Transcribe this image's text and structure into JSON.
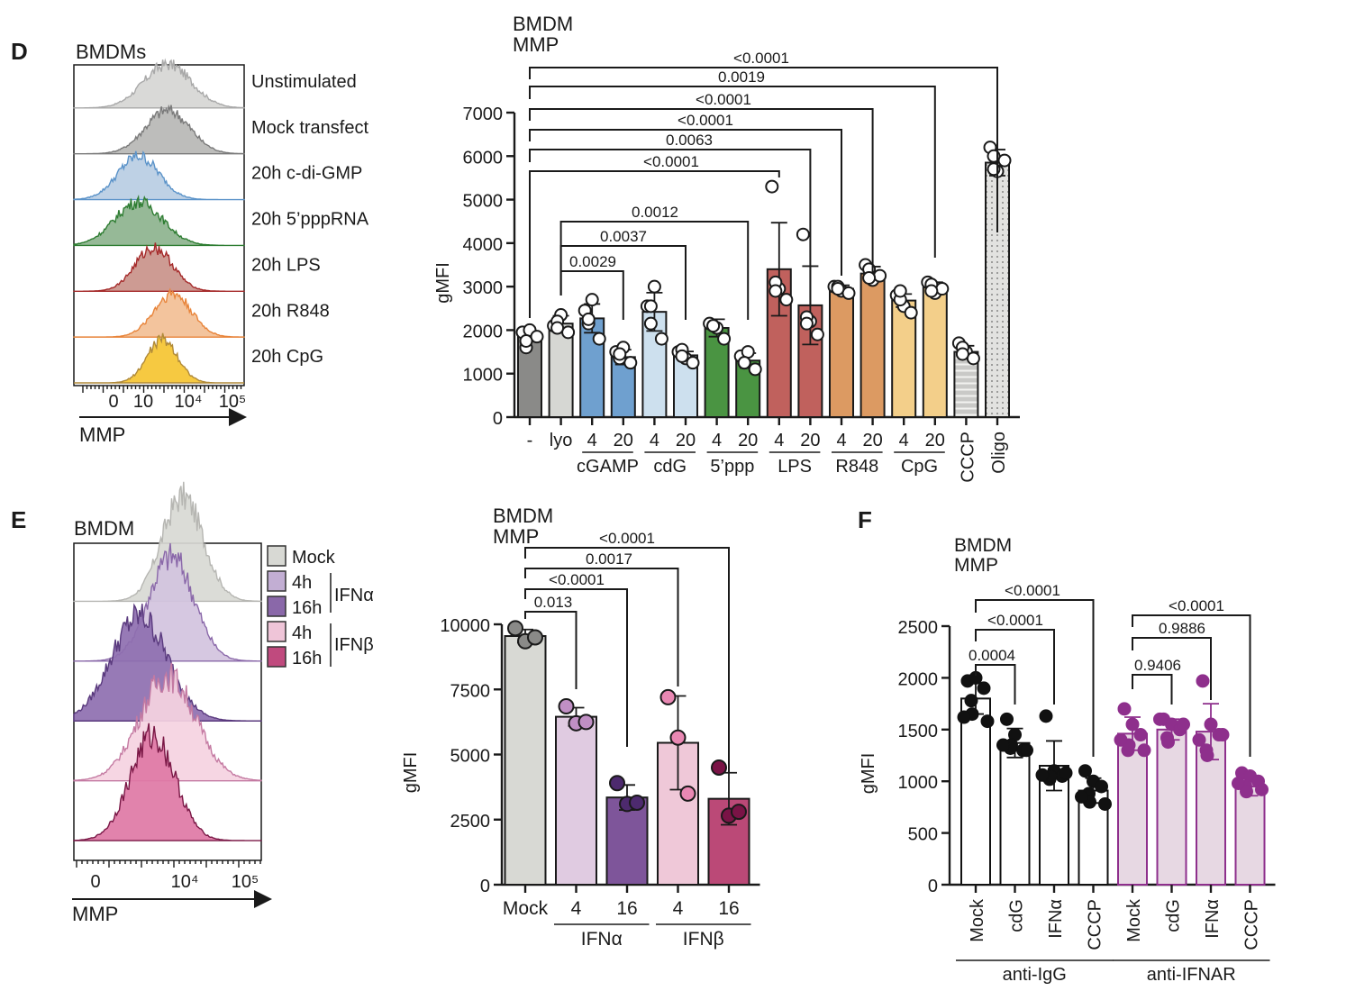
{
  "panels": {
    "D": {
      "letter": "D"
    },
    "E": {
      "letter": "E"
    },
    "F": {
      "letter": "F"
    }
  },
  "chart_data": [
    {
      "id": "D-histogram",
      "type": "area",
      "title": "BMDMs",
      "xlabel": "MMP",
      "x_ticks": [
        "0",
        "10",
        "10⁴",
        "10⁵"
      ],
      "series": [
        {
          "name": "Unstimulated",
          "color": "#a9a9a9",
          "fill": "#d6d6d4",
          "peak_pos": 0.55,
          "width": 0.14
        },
        {
          "name": "Mock transfect",
          "color": "#7a7a7a",
          "fill": "#b7b7b5",
          "peak_pos": 0.55,
          "width": 0.13
        },
        {
          "name": "20h c-di-GMP",
          "color": "#5b93c9",
          "fill": "#b8cde3",
          "peak_pos": 0.38,
          "width": 0.12
        },
        {
          "name": "20h 5’pppRNA",
          "color": "#2e7d32",
          "fill": "#8db38e",
          "peak_pos": 0.38,
          "width": 0.14
        },
        {
          "name": "20h LPS",
          "color": "#a52a2a",
          "fill": "#c9928a",
          "peak_pos": 0.47,
          "width": 0.11
        },
        {
          "name": "20h R848",
          "color": "#e8843a",
          "fill": "#f2bf95",
          "peak_pos": 0.58,
          "width": 0.11
        },
        {
          "name": "20h CpG",
          "color": "#b08a3a",
          "fill": "#f5c431",
          "peak_pos": 0.52,
          "width": 0.09
        }
      ]
    },
    {
      "id": "D-bar",
      "type": "bar",
      "title": [
        "BMDM",
        "MMP"
      ],
      "ylabel": "gMFI",
      "ylim": [
        0,
        7000
      ],
      "yticks": [
        0,
        1000,
        2000,
        3000,
        4000,
        5000,
        6000,
        7000
      ],
      "categories": [
        "-",
        "lyo",
        "4",
        "20",
        "4",
        "20",
        "4",
        "20",
        "4",
        "20",
        "4",
        "20",
        "4",
        "20",
        "CCCP",
        "Oligo"
      ],
      "rotated_categories": [
        14,
        15
      ],
      "groups": [
        {
          "label": "cGAMP",
          "from": 2,
          "to": 3
        },
        {
          "label": "cdG",
          "from": 4,
          "to": 5
        },
        {
          "label": "5’ppp",
          "from": 6,
          "to": 7
        },
        {
          "label": "LPS",
          "from": 8,
          "to": 9
        },
        {
          "label": "R848",
          "from": 10,
          "to": 11
        },
        {
          "label": "CpG",
          "from": 12,
          "to": 13
        }
      ],
      "values": [
        1850,
        2150,
        2270,
        1380,
        2420,
        1420,
        2050,
        1300,
        3400,
        2570,
        2950,
        3300,
        2680,
        2980,
        1500,
        5850
      ],
      "errors": [
        100,
        180,
        330,
        170,
        440,
        90,
        200,
        170,
        1070,
        900,
        80,
        160,
        150,
        120,
        140,
        300
      ],
      "points": [
        [
          1950,
          2000,
          1850,
          1600,
          1750
        ],
        [
          2100,
          2350,
          1950,
          2200,
          2050
        ],
        [
          2450,
          2700,
          1800,
          2150,
          2250
        ],
        [
          1500,
          1600,
          1250,
          1350,
          1450
        ],
        [
          2550,
          3000,
          1800,
          2150,
          2550
        ],
        [
          1500,
          1350,
          1250,
          1550,
          1400
        ],
        [
          2150,
          2050,
          1800,
          2100,
          2100
        ],
        [
          1400,
          1500,
          1100,
          1250,
          1250
        ],
        [
          5300,
          2950,
          2700,
          3100,
          2900
        ],
        [
          4200,
          2200,
          1900,
          2300,
          2150
        ],
        [
          3000,
          2900,
          2850,
          3000,
          2950
        ],
        [
          3500,
          3150,
          3250,
          3400,
          3200
        ],
        [
          2800,
          2550,
          2400,
          2700,
          2900
        ],
        [
          3100,
          2850,
          2950,
          3050,
          2900
        ],
        [
          1700,
          1500,
          1350,
          1600,
          1450
        ],
        [
          6200,
          5650,
          5900,
          6000,
          5700
        ]
      ],
      "colors": [
        "#8a8a88",
        "#d6d7d3",
        "#6fa0cf",
        "#6fa0cf",
        "#cde0ee",
        "#cde0ee",
        "#4a9442",
        "#4a9442",
        "#c0615d",
        "#c0615d",
        "#dc9a62",
        "#dc9a62",
        "#f3cf8a",
        "#f3cf8a",
        "#c9c9c7",
        "#d9d9d7"
      ],
      "patterns": {
        "14": "stripes",
        "15": "dots"
      },
      "point_fill": "#ffffff",
      "comparisons": [
        {
          "from": 0,
          "to": 15,
          "p": "<0.0001"
        },
        {
          "from": 0,
          "to": 13,
          "p": "0.0019"
        },
        {
          "from": 0,
          "to": 11,
          "p": "<0.0001"
        },
        {
          "from": 0,
          "to": 10,
          "p": "<0.0001"
        },
        {
          "from": 0,
          "to": 9,
          "p": "0.0063"
        },
        {
          "from": 0,
          "to": 8,
          "p": "<0.0001"
        },
        {
          "from": 1,
          "to": 7,
          "p": "0.0012"
        },
        {
          "from": 1,
          "to": 5,
          "p": "0.0037"
        },
        {
          "from": 1,
          "to": 3,
          "p": "0.0029"
        }
      ]
    },
    {
      "id": "E-histogram",
      "type": "area",
      "title": "BMDM",
      "xlabel": "MMP",
      "x_ticks": [
        "0",
        "10⁴",
        "10⁵"
      ],
      "legend": [
        {
          "label": "Mock",
          "color": "#d8d9d4"
        },
        {
          "label": "4h",
          "color": "#c2aed3",
          "group": "IFNα"
        },
        {
          "label": "16h",
          "color": "#8a68a9",
          "group": "IFNα"
        },
        {
          "label": "4h",
          "color": "#efc5d8",
          "group": "IFNβ"
        },
        {
          "label": "16h",
          "color": "#c04a7e",
          "group": "IFNβ"
        }
      ],
      "legend_groups": [
        "IFNα",
        "IFNβ"
      ],
      "series": [
        {
          "name": "Mock",
          "color": "#b6b6b2",
          "fill": "#d8d9d4",
          "peak_pos": 0.58,
          "width": 0.11
        },
        {
          "name": "IFNα 4h",
          "color": "#8a68a9",
          "fill": "#d3c3de",
          "peak_pos": 0.52,
          "width": 0.12
        },
        {
          "name": "IFNα 16h",
          "color": "#5a3a7e",
          "fill": "#8e6fb0",
          "peak_pos": 0.35,
          "width": 0.15
        },
        {
          "name": "IFNβ 4h",
          "color": "#c47aa2",
          "fill": "#f5d3e1",
          "peak_pos": 0.5,
          "width": 0.15
        },
        {
          "name": "IFNβ 16h",
          "color": "#7a1846",
          "fill": "#de78a5",
          "peak_pos": 0.42,
          "width": 0.12
        }
      ]
    },
    {
      "id": "E-bar",
      "type": "bar",
      "title": [
        "BMDM",
        "MMP"
      ],
      "ylabel": "gMFI",
      "ylim": [
        0,
        10000
      ],
      "yticks": [
        0,
        2500,
        5000,
        7500,
        10000
      ],
      "categories": [
        "Mock",
        "4",
        "16",
        "4",
        "16"
      ],
      "groups": [
        {
          "label": "IFNα",
          "from": 1,
          "to": 2
        },
        {
          "label": "IFNβ",
          "from": 3,
          "to": 4
        }
      ],
      "values": [
        9550,
        6450,
        3350,
        5450,
        3300
      ],
      "errors": [
        250,
        350,
        480,
        1800,
        1000
      ],
      "points": [
        [
          9850,
          9350,
          9500
        ],
        [
          6850,
          6200,
          6250
        ],
        [
          3900,
          3100,
          3150
        ],
        [
          7200,
          5650,
          3500
        ],
        [
          4500,
          2650,
          2800
        ]
      ],
      "colors": [
        "#d8d9d4",
        "#e0cbe1",
        "#7e559a",
        "#efc8d8",
        "#bb4977"
      ],
      "point_colors": [
        "#8a8a88",
        "#c08fc4",
        "#4d2a6e",
        "#e988b3",
        "#7a1346"
      ],
      "comparisons": [
        {
          "from": 0,
          "to": 4,
          "p": "<0.0001"
        },
        {
          "from": 0,
          "to": 3,
          "p": "0.0017"
        },
        {
          "from": 0,
          "to": 2,
          "p": "<0.0001"
        },
        {
          "from": 0,
          "to": 1,
          "p": "0.013"
        }
      ]
    },
    {
      "id": "F-bar",
      "type": "bar",
      "title": [
        "BMDM",
        "MMP"
      ],
      "ylabel": "gMFI",
      "ylim": [
        0,
        2500
      ],
      "yticks": [
        0,
        500,
        1000,
        1500,
        2000,
        2500
      ],
      "categories": [
        "Mock",
        "cdG",
        "IFNα",
        "CCCP",
        "Mock",
        "cdG",
        "IFNα",
        "CCCP"
      ],
      "groups": [
        {
          "label": "anti-IgG",
          "from": 0,
          "to": 3
        },
        {
          "label": "anti-IFNAR",
          "from": 4,
          "to": 7
        }
      ],
      "values": [
        1800,
        1370,
        1150,
        910,
        1460,
        1500,
        1480,
        950
      ],
      "errors": [
        150,
        140,
        240,
        120,
        160,
        100,
        270,
        90
      ],
      "points": [
        [
          1970,
          2000,
          1900,
          1780,
          1650,
          1580,
          1620
        ],
        [
          1600,
          1450,
          1300,
          1320,
          1350,
          1300,
          1350
        ],
        [
          1630,
          1100,
          1050,
          1020,
          1050,
          1080,
          1060
        ],
        [
          1100,
          1000,
          950,
          880,
          800,
          780,
          850
        ],
        [
          1700,
          1550,
          1450,
          1300,
          1350,
          1300,
          1400
        ],
        [
          1600,
          1550,
          1500,
          1420,
          1380,
          1550,
          1600
        ],
        [
          1970,
          1550,
          1450,
          1300,
          1250,
          1450,
          1400
        ],
        [
          1080,
          1050,
          1000,
          950,
          900,
          920,
          980
        ]
      ],
      "colors": [
        "#ffffff",
        "#ffffff",
        "#ffffff",
        "#ffffff",
        "#e7d8e3",
        "#e7d8e3",
        "#e7d8e3",
        "#e7d8e3"
      ],
      "edge_colors": [
        "#111111",
        "#111111",
        "#111111",
        "#111111",
        "#8e2f8c",
        "#8e2f8c",
        "#8e2f8c",
        "#8e2f8c"
      ],
      "point_colors": [
        "#111111",
        "#111111",
        "#111111",
        "#111111",
        "#8e2f8c",
        "#8e2f8c",
        "#8e2f8c",
        "#8e2f8c"
      ],
      "comparisons": [
        {
          "from": 0,
          "to": 3,
          "p": "<0.0001"
        },
        {
          "from": 0,
          "to": 2,
          "p": "<0.0001"
        },
        {
          "from": 0,
          "to": 1,
          "p": "0.0004"
        },
        {
          "from": 4,
          "to": 7,
          "p": "<0.0001"
        },
        {
          "from": 4,
          "to": 6,
          "p": "0.9886"
        },
        {
          "from": 4,
          "to": 5,
          "p": "0.9406"
        }
      ]
    }
  ]
}
